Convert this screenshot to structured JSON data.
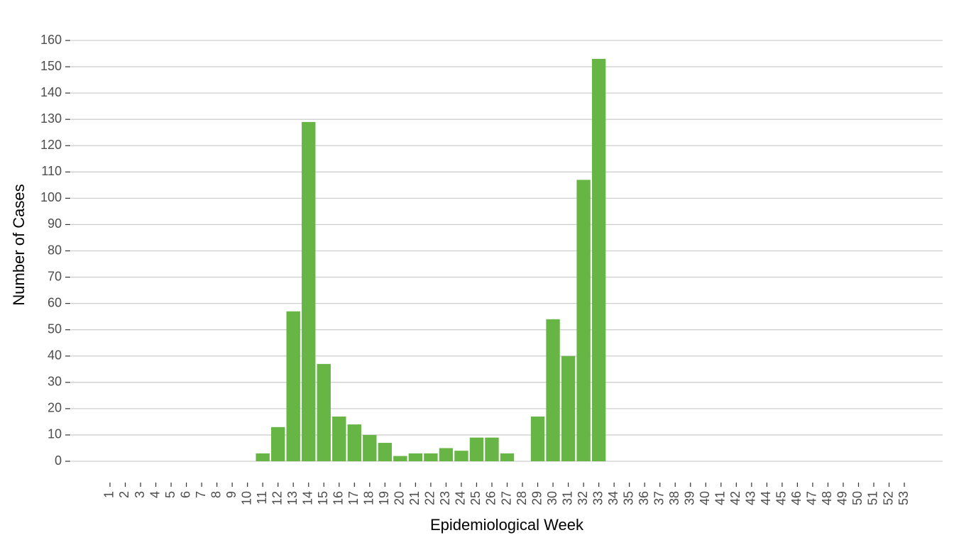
{
  "chart_data": {
    "type": "bar",
    "x_label": "Epidemiological Week",
    "y_label": "Number of Cases",
    "categories": [
      "1",
      "2",
      "3",
      "4",
      "5",
      "6",
      "7",
      "8",
      "9",
      "10",
      "11",
      "12",
      "13",
      "14",
      "15",
      "16",
      "17",
      "18",
      "19",
      "20",
      "21",
      "22",
      "23",
      "24",
      "25",
      "26",
      "27",
      "28",
      "29",
      "30",
      "31",
      "32",
      "33",
      "34",
      "35",
      "36",
      "37",
      "38",
      "39",
      "40",
      "41",
      "42",
      "43",
      "44",
      "45",
      "46",
      "47",
      "48",
      "49",
      "50",
      "51",
      "52",
      "53"
    ],
    "values": [
      0,
      0,
      0,
      0,
      0,
      0,
      0,
      0,
      0,
      0,
      3,
      13,
      57,
      129,
      37,
      17,
      14,
      10,
      7,
      2,
      3,
      3,
      5,
      4,
      9,
      9,
      3,
      0,
      17,
      54,
      40,
      107,
      153,
      0,
      0,
      0,
      0,
      0,
      0,
      0,
      0,
      0,
      0,
      0,
      0,
      0,
      0,
      0,
      0,
      0,
      0,
      0,
      0
    ],
    "color": "#67b545",
    "ylim": [
      0,
      160
    ],
    "yticks": [
      0,
      10,
      20,
      30,
      40,
      50,
      60,
      70,
      80,
      90,
      100,
      110,
      120,
      130,
      140,
      150,
      160
    ],
    "grid": true
  }
}
